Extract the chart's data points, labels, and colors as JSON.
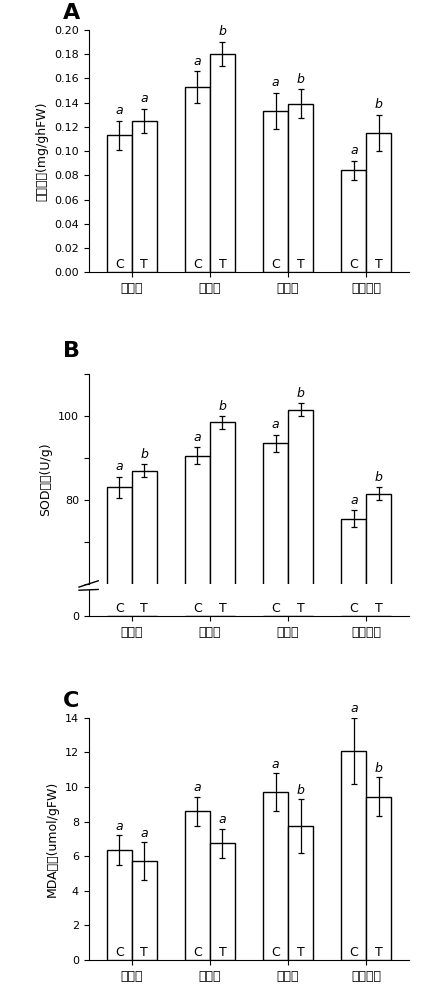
{
  "panel_A": {
    "title": "A",
    "ylabel": "根系活力(mg/ghFW)",
    "ylim": [
      0.0,
      0.2
    ],
    "yticks": [
      0.0,
      0.02,
      0.04,
      0.06,
      0.08,
      0.1,
      0.12,
      0.14,
      0.16,
      0.18,
      0.2
    ],
    "groups": [
      "缓苗期",
      "现蕾期",
      "幼果期",
      "采收始期"
    ],
    "values_C": [
      0.113,
      0.153,
      0.133,
      0.084
    ],
    "values_T": [
      0.125,
      0.18,
      0.139,
      0.115
    ],
    "errors_C": [
      0.012,
      0.013,
      0.015,
      0.008
    ],
    "errors_T": [
      0.01,
      0.01,
      0.012,
      0.015
    ],
    "labels_C": [
      "a",
      "a",
      "a",
      "a"
    ],
    "labels_T": [
      "a",
      "b",
      "b",
      "b"
    ]
  },
  "panel_B": {
    "title": "B",
    "ylabel": "SOD活性(U/g)",
    "ylim_lower": [
      0,
      10
    ],
    "ylim_upper": [
      60,
      110
    ],
    "yticks_upper": [
      60,
      70,
      80,
      90,
      100,
      110
    ],
    "ytick_labels_upper": [
      "",
      "",
      "80",
      "",
      "100",
      ""
    ],
    "ytick_labels_lower": [
      "0"
    ],
    "groups": [
      "缓苗期",
      "现蕾期",
      "幼果期",
      "采收始期"
    ],
    "values_C": [
      83.0,
      90.5,
      93.5,
      75.5
    ],
    "values_T": [
      87.0,
      98.5,
      101.5,
      81.5
    ],
    "errors_C": [
      2.5,
      2.0,
      2.0,
      2.0
    ],
    "errors_T": [
      1.5,
      1.5,
      1.5,
      1.5
    ],
    "labels_C": [
      "a",
      "a",
      "a",
      "a"
    ],
    "labels_T": [
      "b",
      "b",
      "b",
      "b"
    ]
  },
  "panel_C": {
    "title": "C",
    "ylabel": "MDA含量(umol/gFW)",
    "ylim": [
      0,
      14
    ],
    "yticks": [
      0,
      2,
      4,
      6,
      8,
      10,
      12,
      14
    ],
    "groups": [
      "缓苗期",
      "现蕾期",
      "幼果期",
      "采收始期"
    ],
    "values_C": [
      6.35,
      8.6,
      9.7,
      12.1
    ],
    "values_T": [
      5.7,
      6.75,
      7.75,
      9.45
    ],
    "errors_C": [
      0.85,
      0.85,
      1.1,
      1.9
    ],
    "errors_T": [
      1.1,
      0.85,
      1.55,
      1.1
    ],
    "labels_C": [
      "a",
      "a",
      "a",
      "a"
    ],
    "labels_T": [
      "a",
      "a",
      "b",
      "b"
    ]
  },
  "bar_width": 0.32,
  "bar_color": "white",
  "bar_edgecolor": "black",
  "bar_linewidth": 1.0,
  "errorbar_color": "black",
  "errorbar_capsize": 2.5,
  "errorbar_linewidth": 0.9,
  "label_fontsize": 9,
  "tick_fontsize": 8,
  "ylabel_fontsize": 9,
  "panel_label_fontsize": 16,
  "xticklabel_fontsize": 9
}
